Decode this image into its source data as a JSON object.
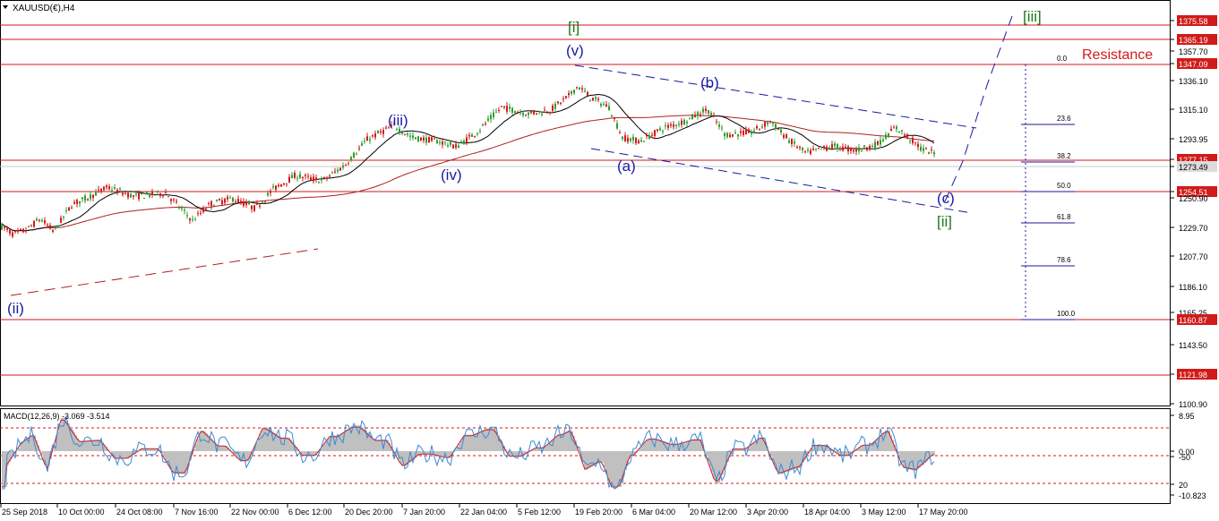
{
  "header": {
    "symbol_label": "XAUUSD(€),H4",
    "menu_icon": "triangle-down-icon"
  },
  "colors": {
    "candle_up": "#2e9e2e",
    "candle_down": "#d11a1a",
    "level_line": "#d11a1a",
    "fib_line": "#1a1a9e",
    "ma_slow": "#b02020",
    "ma_fast": "#000000",
    "wave_blue": "#1a1aa8",
    "wave_green": "#1c7a1c",
    "resistance_text": "#d11a1a",
    "macd_hist": "#c0c0c0",
    "macd_signal": "#d11a1a",
    "macd_main": "#3a8ad6"
  },
  "price_axis": {
    "ticks": [
      "1375.58",
      "1365.19",
      "1357.70",
      "1347.09",
      "1336.10",
      "1315.10",
      "1293.95",
      "1277.15",
      "1273.49",
      "1254.51",
      "1250.90",
      "1229.70",
      "1207.70",
      "1186.10",
      "1165.25",
      "1160.87",
      "1143.50",
      "1121.98",
      "1100.90"
    ]
  },
  "levels": [
    {
      "price": "1375.58"
    },
    {
      "price": "1365.19"
    },
    {
      "price": "1347.09"
    },
    {
      "price": "1277.15"
    },
    {
      "price": "1254.51"
    },
    {
      "price": "1160.87"
    },
    {
      "price": "1121.98"
    }
  ],
  "current_price": "1273.49",
  "resistance_label": "Resistance",
  "fib_levels": [
    {
      "label": "0.0"
    },
    {
      "label": "23.6"
    },
    {
      "label": "38.2"
    },
    {
      "label": "50.0"
    },
    {
      "label": "61.8"
    },
    {
      "label": "78.6"
    },
    {
      "label": "100.0"
    }
  ],
  "wave_labels": [
    {
      "text": "(ii)",
      "color": "blue"
    },
    {
      "text": "(iii)",
      "color": "blue"
    },
    {
      "text": "(iv)",
      "color": "blue"
    },
    {
      "text": "(v)",
      "color": "blue"
    },
    {
      "text": "[i]",
      "color": "green"
    },
    {
      "text": "(a)",
      "color": "blue"
    },
    {
      "text": "(b)",
      "color": "blue"
    },
    {
      "text": "(c)",
      "color": "blue"
    },
    {
      "text": "[ii]",
      "color": "green"
    },
    {
      "text": "[iii]",
      "color": "green"
    }
  ],
  "macd": {
    "label": "MACD(12,26,9) -3.069 -3.514",
    "ticks": [
      "8.95",
      "0.00",
      "-50",
      "20",
      "-10.823"
    ]
  },
  "time_axis": {
    "ticks": [
      "25 Sep 2018",
      "10 Oct 00:00",
      "24 Oct 08:00",
      "7 Nov 16:00",
      "22 Nov 00:00",
      "6 Dec 12:00",
      "20 Dec 20:00",
      "7 Jan 20:00",
      "22 Jan 04:00",
      "5 Feb 12:00",
      "19 Feb 20:00",
      "6 Mar 04:00",
      "20 Mar 12:00",
      "3 Apr 20:00",
      "18 Apr 04:00",
      "3 May 12:00",
      "17 May 20:00"
    ]
  }
}
